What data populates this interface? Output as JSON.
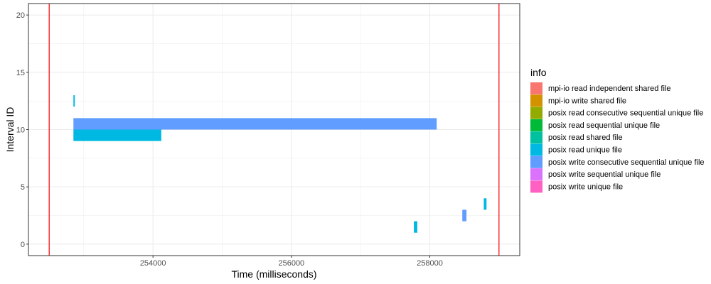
{
  "chart_data": {
    "type": "timeline",
    "xlabel": "Time (milliseconds)",
    "ylabel": "Interval ID",
    "xlim": [
      252200,
      259300
    ],
    "ylim": [
      -1,
      21
    ],
    "x_ticks": [
      254000,
      256000,
      258000
    ],
    "x_tick_labels": [
      "254000",
      "256000",
      "258000"
    ],
    "y_ticks": [
      0,
      5,
      10,
      15,
      20
    ],
    "y_tick_labels": [
      "0",
      "5",
      "10",
      "15",
      "20"
    ],
    "grid": true,
    "legend_title": "info",
    "legend_position": "right",
    "categories": [
      {
        "name": "mpi-io read independent shared file",
        "color": "#F8766D"
      },
      {
        "name": "mpi-io write shared file",
        "color": "#D39200"
      },
      {
        "name": "posix read consecutive sequential unique file",
        "color": "#93AA00"
      },
      {
        "name": "posix read sequential unique file",
        "color": "#00BA38"
      },
      {
        "name": "posix read shared file",
        "color": "#00C19F"
      },
      {
        "name": "posix read unique file",
        "color": "#00B9E3"
      },
      {
        "name": "posix write consecutive sequential unique file",
        "color": "#619CFF"
      },
      {
        "name": "posix write sequential unique file",
        "color": "#DB72FB"
      },
      {
        "name": "posix write unique file",
        "color": "#FF61C3"
      }
    ],
    "intervals": [
      {
        "id": 12,
        "start": 252850,
        "end": 252870,
        "category": 5
      },
      {
        "id": 10,
        "start": 252850,
        "end": 258100,
        "category": 6
      },
      {
        "id": 9,
        "start": 252850,
        "end": 254120,
        "category": 5
      },
      {
        "id": 1,
        "start": 257770,
        "end": 257820,
        "category": 5
      },
      {
        "id": 2,
        "start": 258470,
        "end": 258530,
        "category": 6
      },
      {
        "id": 3,
        "start": 258780,
        "end": 258820,
        "category": 5
      }
    ],
    "vlines": [
      252500,
      259000
    ],
    "vline_color": "#FF0000"
  }
}
